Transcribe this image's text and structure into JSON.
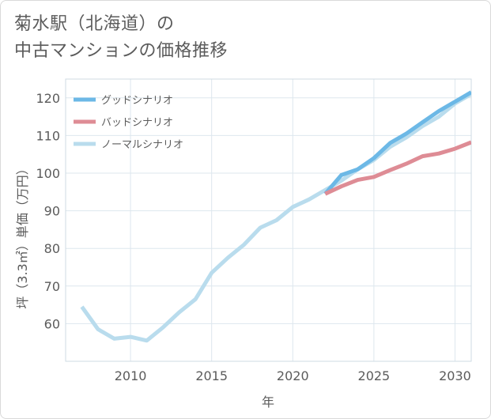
{
  "title": {
    "line1": "菊水駅（北海道）の",
    "line2": "中古マンションの価格推移"
  },
  "chart_data": {
    "type": "line",
    "title": "菊水駅（北海道）の中古マンションの価格推移",
    "xlabel": "年",
    "ylabel": "坪（3.3㎡）単価（万円）",
    "xlim": [
      2006,
      2031
    ],
    "ylim": [
      50,
      125
    ],
    "xticks": [
      2010,
      2015,
      2020,
      2025,
      2030
    ],
    "xtick_labels": [
      "2010",
      "2015",
      "2020",
      "2025",
      "2030"
    ],
    "yticks": [
      60,
      70,
      80,
      90,
      100,
      110,
      120
    ],
    "ytick_labels": [
      "60",
      "70",
      "80",
      "90",
      "100",
      "110",
      "120"
    ],
    "grid": true,
    "legend_position": "top-left",
    "series": [
      {
        "name": "グッドシナリオ",
        "color": "#6cb8e6",
        "x": [
          2022,
          2023,
          2024,
          2025,
          2026,
          2027,
          2028,
          2029,
          2030,
          2031
        ],
        "y": [
          94.5,
          99.5,
          101,
          104,
          108,
          110.5,
          113.5,
          116.5,
          119,
          121.5
        ]
      },
      {
        "name": "バッドシナリオ",
        "color": "#de8c95",
        "x": [
          2022,
          2023,
          2024,
          2025,
          2026,
          2027,
          2028,
          2029,
          2030,
          2031
        ],
        "y": [
          94.5,
          96.5,
          98.2,
          99,
          100.8,
          102.5,
          104.5,
          105.2,
          106.5,
          108.2
        ]
      },
      {
        "name": "ノーマルシナリオ",
        "color": "#b9dced",
        "x": [
          2007,
          2008,
          2009,
          2010,
          2011,
          2012,
          2013,
          2014,
          2015,
          2016,
          2017,
          2018,
          2019,
          2020,
          2021,
          2022,
          2023,
          2024,
          2025,
          2026,
          2027,
          2028,
          2029,
          2030,
          2031
        ],
        "y": [
          64.5,
          58.5,
          56,
          56.5,
          55.5,
          59,
          63,
          66.5,
          73.5,
          77.5,
          81,
          85.5,
          87.5,
          91,
          93,
          95.5,
          98,
          101,
          103.5,
          107,
          109.5,
          112.5,
          115,
          118.5,
          121
        ]
      }
    ]
  }
}
